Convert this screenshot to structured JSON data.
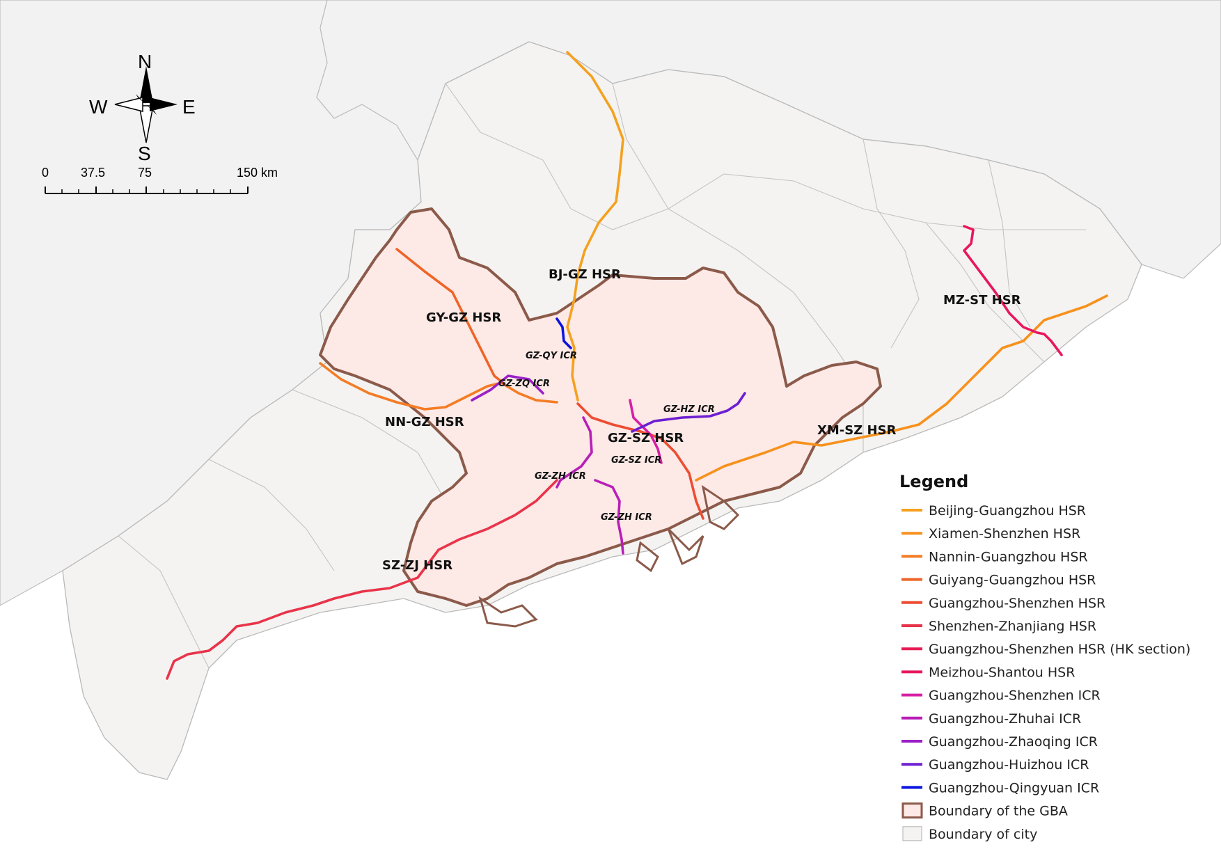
{
  "compass": {
    "n": "N",
    "s": "S",
    "e": "E",
    "w": "W"
  },
  "scale_bar": {
    "ticks": [
      "0",
      "37.5",
      "75",
      "150 km"
    ]
  },
  "rail_labels": {
    "hsr": [
      "BJ-GZ HSR",
      "GY-GZ HSR",
      "NN-GZ HSR",
      "GZ-SZ HSR",
      "XM-SZ HSR",
      "MZ-ST HSR",
      "SZ-ZJ HSR"
    ],
    "icr": [
      "GZ-QY ICR",
      "GZ-ZQ ICR",
      "GZ-HZ ICR",
      "GZ-SZ ICR",
      "GZ-ZH ICR",
      "GZ-ZH ICR"
    ]
  },
  "legend": {
    "title": "Legend",
    "items": [
      {
        "label": "Beijing-Guangzhou HSR",
        "color": "#f4a11f",
        "kind": "line"
      },
      {
        "label": "Xiamen-Shenzhen HSR",
        "color": "#f7911d",
        "kind": "line"
      },
      {
        "label": "Nannin-Guangzhou HSR",
        "color": "#f47c24",
        "kind": "line"
      },
      {
        "label": "Guiyang-Guangzhou HSR",
        "color": "#ee6527",
        "kind": "line"
      },
      {
        "label": "Guangzhou-Shenzhen HSR",
        "color": "#ec4d32",
        "kind": "line"
      },
      {
        "label": "Shenzhen-Zhanjiang HSR",
        "color": "#e8344a",
        "kind": "line"
      },
      {
        "label": "Guangzhou-Shenzhen HSR (HK section)",
        "color": "#e61c55",
        "kind": "line"
      },
      {
        "label": "Meizhou-Shantou HSR",
        "color": "#e8175f",
        "kind": "line"
      },
      {
        "label": "Guangzhou-Shenzhen ICR",
        "color": "#d61fa6",
        "kind": "line"
      },
      {
        "label": "Guangzhou-Zhuhai ICR",
        "color": "#b81fb8",
        "kind": "line"
      },
      {
        "label": "Guangzhou-Zhaoqing ICR",
        "color": "#9b1fc7",
        "kind": "line"
      },
      {
        "label": "Guangzhou-Huizhou ICR",
        "color": "#6d1fd1",
        "kind": "line"
      },
      {
        "label": "Guangzhou-Qingyuan ICR",
        "color": "#0a14e0",
        "kind": "line"
      },
      {
        "label": "Boundary of the GBA",
        "color": "#8b5a4a",
        "kind": "gba-box"
      },
      {
        "label": "Boundary of city",
        "color": "#bdbdbd",
        "kind": "city-box"
      }
    ]
  }
}
